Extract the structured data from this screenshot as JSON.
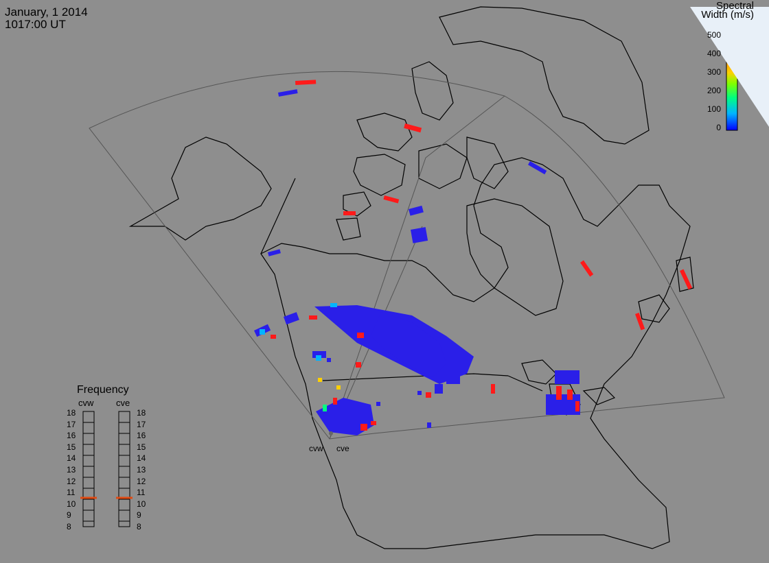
{
  "header": {
    "date": "January, 1 2014",
    "time": "1017:00 UT"
  },
  "colorbar": {
    "title_line1": "Spectral",
    "title_line2": "Width (m/s)",
    "ticks": [
      "500",
      "400",
      "300",
      "200",
      "100",
      "0"
    ],
    "colors": [
      "#0000ff",
      "#00b4ff",
      "#00ff80",
      "#80ff00",
      "#ffd000",
      "#ff8000",
      "#ff0000"
    ],
    "range": [
      0,
      500
    ]
  },
  "frequency": {
    "title": "Frequency",
    "radars": [
      {
        "name": "cvw",
        "value": 10.7
      },
      {
        "name": "cve",
        "value": 10.7
      }
    ],
    "ticks": [
      "18",
      "17",
      "16",
      "15",
      "14",
      "13",
      "12",
      "11",
      "10",
      "9",
      "8"
    ]
  },
  "radar_sites": [
    "cvw",
    "cve"
  ],
  "colors": {
    "background": "#8e8e8e",
    "echo": "#2a1fe8",
    "high_width": "#ff1a1a",
    "marker": "#e04a12"
  }
}
